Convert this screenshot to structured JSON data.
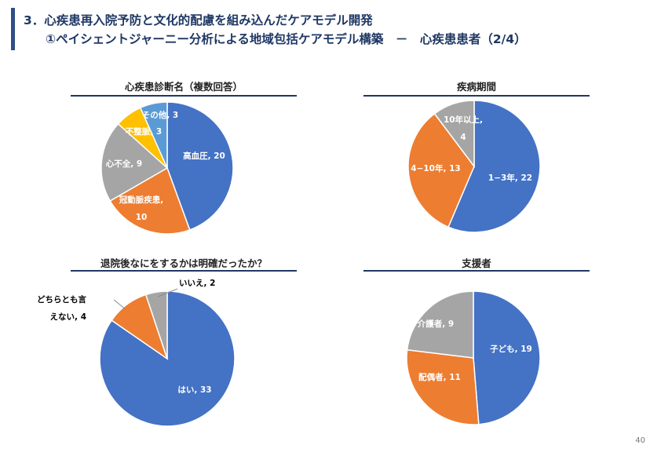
{
  "header": {
    "title_line1": "3．心疾患再入院予防と文化的配慮を組み込んだケアモデル開発",
    "title_line2": "①ペイシェントジャーニー分析による地域包括ケアモデル構築　－　心疾患患者（2/4）",
    "accent_color": "#2e4f86",
    "title_color": "#1f3864"
  },
  "page_number": "40",
  "chart_data": [
    {
      "type": "pie",
      "title": "心疾患診断名（複数回答）",
      "slices": [
        {
          "label": "高血圧, 20",
          "value": 20,
          "color": "#4472c4"
        },
        {
          "label": "冠動脈疾患, 10",
          "value": 10,
          "color": "#ed7d31"
        },
        {
          "label": "心不全, 9",
          "value": 9,
          "color": "#a5a5a5"
        },
        {
          "label": "不整脈, 3",
          "value": 3,
          "color": "#ffc000"
        },
        {
          "label": "その他, 3",
          "value": 3,
          "color": "#5b9bd5"
        }
      ]
    },
    {
      "type": "pie",
      "title": "疾病期間",
      "slices": [
        {
          "label": "1−3年, 22",
          "value": 22,
          "color": "#4472c4"
        },
        {
          "label": "4−10年, 13",
          "value": 13,
          "color": "#ed7d31"
        },
        {
          "label": "10年以上, 4",
          "value": 4,
          "color": "#a5a5a5"
        }
      ]
    },
    {
      "type": "pie",
      "title": "退院後なにをするかは明確だったか？",
      "slices": [
        {
          "label": "はい, 33",
          "value": 33,
          "color": "#4472c4"
        },
        {
          "label": "どちらとも言えない, 4",
          "value": 4,
          "color": "#ed7d31"
        },
        {
          "label": "いいえ, 2",
          "value": 2,
          "color": "#a5a5a5"
        }
      ]
    },
    {
      "type": "pie",
      "title": "支援者",
      "slices": [
        {
          "label": "子ども, 19",
          "value": 19,
          "color": "#4472c4"
        },
        {
          "label": "配偶者, 11",
          "value": 11,
          "color": "#ed7d31"
        },
        {
          "label": "介護者, 9",
          "value": 9,
          "color": "#a5a5a5"
        }
      ]
    }
  ]
}
